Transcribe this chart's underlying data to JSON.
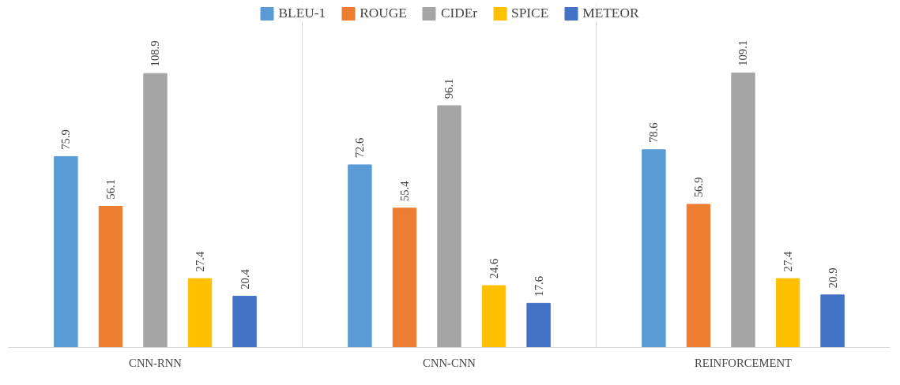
{
  "chart_data": {
    "type": "bar",
    "categories": [
      "CNN-RNN",
      "CNN-CNN",
      "REINFORCEMENT"
    ],
    "series": [
      {
        "name": "BLEU-1",
        "color": "#5b9bd5",
        "values": [
          75.9,
          72.6,
          78.6
        ]
      },
      {
        "name": "ROUGE",
        "color": "#ed7d31",
        "values": [
          56.1,
          55.4,
          56.9
        ]
      },
      {
        "name": "CIDEr",
        "color": "#a5a5a5",
        "values": [
          108.9,
          96.1,
          109.1
        ]
      },
      {
        "name": "SPICE",
        "color": "#ffc000",
        "values": [
          27.4,
          24.6,
          27.4
        ]
      },
      {
        "name": "METEOR",
        "color": "#4472c4",
        "values": [
          20.4,
          17.6,
          20.9
        ]
      }
    ],
    "data_labels": true,
    "legend": "top",
    "grid": false,
    "tick_labels": "x"
  }
}
